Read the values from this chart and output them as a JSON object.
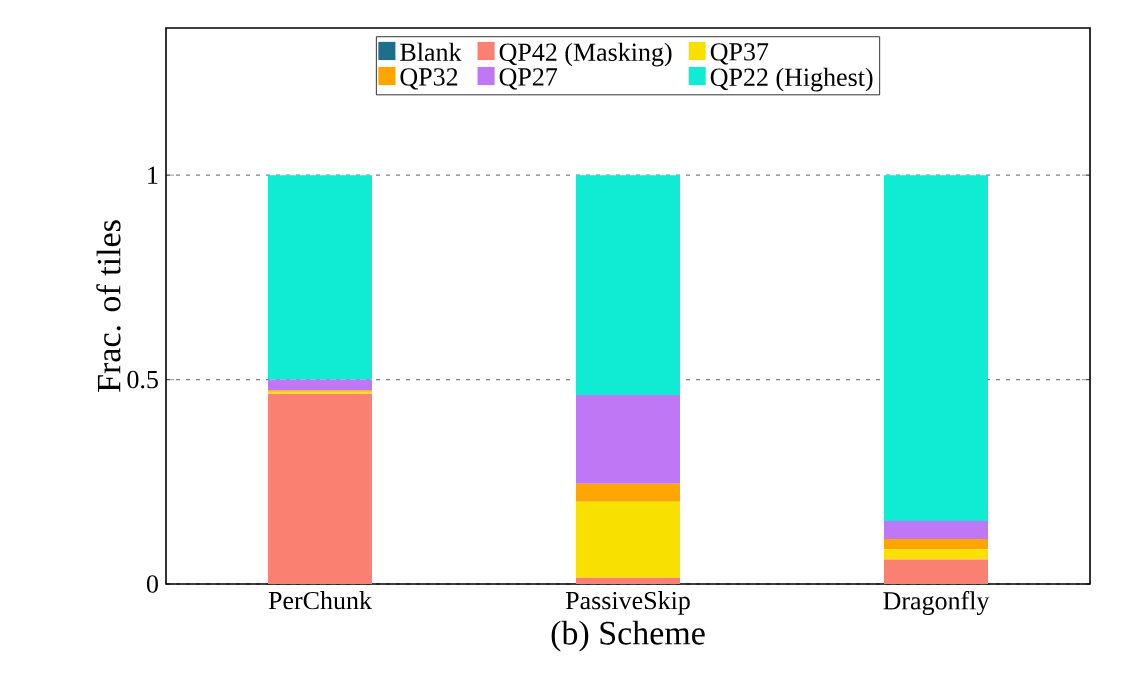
{
  "chart_data": {
    "type": "bar",
    "stacked": true,
    "xlabel": "(b) Scheme",
    "ylabel": "Frac. of tiles",
    "categories": [
      "PerChunk",
      "PassiveSkip",
      "Dragonfly"
    ],
    "series": [
      {
        "name": "Blank",
        "color": "#1f6e8c",
        "values": [
          0,
          0,
          0
        ]
      },
      {
        "name": "QP42 (Masking)",
        "color": "#fa8072",
        "values": [
          0.466,
          0.015,
          0.06
        ]
      },
      {
        "name": "QP37",
        "color": "#f8e000",
        "values": [
          0.004,
          0.186,
          0.025
        ]
      },
      {
        "name": "QP32",
        "color": "#ffa500",
        "values": [
          0.004,
          0.044,
          0.025
        ]
      },
      {
        "name": "QP27",
        "color": "#bf77f6",
        "values": [
          0.026,
          0.217,
          0.044
        ]
      },
      {
        "name": "QP22 (Highest)",
        "color": "#10ecd4",
        "values": [
          0.5,
          0.538,
          0.846
        ]
      }
    ],
    "ylim": [
      0,
      1.36
    ],
    "yticks": [
      0,
      0.5,
      1
    ],
    "grid": "y",
    "legend": "top"
  }
}
